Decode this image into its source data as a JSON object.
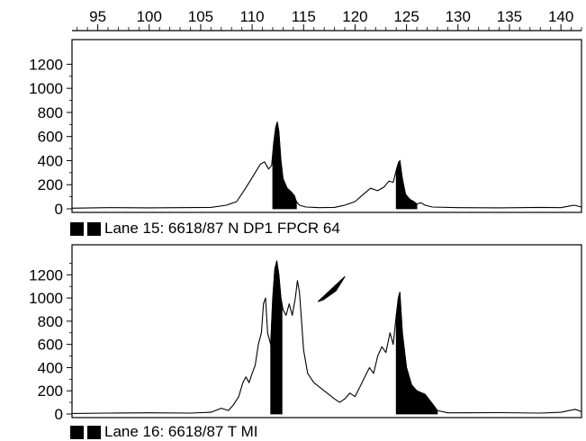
{
  "chart_data": {
    "type": "area",
    "x_axis": {
      "range": [
        92.5,
        142
      ],
      "ticks": [
        95,
        100,
        105,
        110,
        115,
        120,
        125,
        130,
        135,
        140
      ],
      "position": "top"
    },
    "panels": [
      {
        "id": "lane15",
        "label": "Lane 15: 6618/87 N DP1 FPCR 64",
        "ylim": [
          0,
          1300
        ],
        "yticks": [
          0,
          200,
          400,
          600,
          800,
          1000,
          1200
        ],
        "filled_regions": [
          [
            112,
            114.3
          ],
          [
            124,
            126
          ]
        ],
        "points": [
          [
            92.5,
            5
          ],
          [
            96,
            10
          ],
          [
            100,
            8
          ],
          [
            103,
            10
          ],
          [
            106,
            12
          ],
          [
            107.5,
            30
          ],
          [
            108.5,
            60
          ],
          [
            109.2,
            150
          ],
          [
            109.8,
            230
          ],
          [
            110.3,
            300
          ],
          [
            110.8,
            370
          ],
          [
            111.2,
            390
          ],
          [
            111.6,
            330
          ],
          [
            111.9,
            360
          ],
          [
            112.1,
            550
          ],
          [
            112.3,
            680
          ],
          [
            112.45,
            720
          ],
          [
            112.6,
            640
          ],
          [
            112.8,
            400
          ],
          [
            113.0,
            250
          ],
          [
            113.4,
            170
          ],
          [
            113.8,
            140
          ],
          [
            114.1,
            110
          ],
          [
            114.3,
            60
          ],
          [
            114.6,
            30
          ],
          [
            115.2,
            15
          ],
          [
            116.5,
            10
          ],
          [
            118,
            12
          ],
          [
            119,
            30
          ],
          [
            120,
            60
          ],
          [
            120.8,
            120
          ],
          [
            121.5,
            170
          ],
          [
            122.2,
            150
          ],
          [
            122.8,
            180
          ],
          [
            123.3,
            230
          ],
          [
            123.7,
            220
          ],
          [
            124.0,
            320
          ],
          [
            124.2,
            380
          ],
          [
            124.35,
            400
          ],
          [
            124.6,
            250
          ],
          [
            124.9,
            120
          ],
          [
            125.3,
            80
          ],
          [
            125.7,
            60
          ],
          [
            126.0,
            40
          ],
          [
            126.4,
            50
          ],
          [
            126.8,
            30
          ],
          [
            127.5,
            15
          ],
          [
            130,
            10
          ],
          [
            134,
            8
          ],
          [
            138,
            12
          ],
          [
            140,
            10
          ],
          [
            141.3,
            30
          ],
          [
            142,
            15
          ]
        ]
      },
      {
        "id": "lane16",
        "label": "Lane 16: 6618/87 T MI",
        "ylim": [
          0,
          1350
        ],
        "yticks": [
          0,
          200,
          400,
          600,
          800,
          1000,
          1200
        ],
        "filled_regions": [
          [
            111.8,
            112.9
          ],
          [
            124,
            128
          ]
        ],
        "points": [
          [
            92.5,
            5
          ],
          [
            96,
            8
          ],
          [
            100,
            10
          ],
          [
            104,
            8
          ],
          [
            106,
            15
          ],
          [
            107,
            50
          ],
          [
            107.7,
            30
          ],
          [
            108.2,
            80
          ],
          [
            108.7,
            150
          ],
          [
            109.1,
            270
          ],
          [
            109.4,
            320
          ],
          [
            109.7,
            270
          ],
          [
            110.0,
            350
          ],
          [
            110.3,
            420
          ],
          [
            110.6,
            600
          ],
          [
            110.9,
            700
          ],
          [
            111.1,
            950
          ],
          [
            111.3,
            1000
          ],
          [
            111.5,
            700
          ],
          [
            111.8,
            600
          ],
          [
            112.0,
            1000
          ],
          [
            112.2,
            1250
          ],
          [
            112.4,
            1320
          ],
          [
            112.6,
            1200
          ],
          [
            112.8,
            1000
          ],
          [
            113.0,
            900
          ],
          [
            113.3,
            850
          ],
          [
            113.6,
            950
          ],
          [
            113.9,
            850
          ],
          [
            114.2,
            1000
          ],
          [
            114.4,
            1150
          ],
          [
            114.6,
            1050
          ],
          [
            115.0,
            550
          ],
          [
            115.4,
            350
          ],
          [
            116.0,
            270
          ],
          [
            117,
            200
          ],
          [
            118,
            130
          ],
          [
            118.5,
            100
          ],
          [
            119,
            130
          ],
          [
            119.5,
            180
          ],
          [
            120,
            150
          ],
          [
            120.5,
            240
          ],
          [
            121,
            330
          ],
          [
            121.4,
            400
          ],
          [
            121.8,
            350
          ],
          [
            122.2,
            500
          ],
          [
            122.6,
            580
          ],
          [
            123.0,
            530
          ],
          [
            123.4,
            700
          ],
          [
            123.7,
            600
          ],
          [
            124.0,
            850
          ],
          [
            124.2,
            1000
          ],
          [
            124.35,
            1050
          ],
          [
            124.6,
            700
          ],
          [
            125.0,
            400
          ],
          [
            125.5,
            250
          ],
          [
            126.0,
            200
          ],
          [
            126.8,
            170
          ],
          [
            127.5,
            90
          ],
          [
            128.0,
            30
          ],
          [
            129,
            10
          ],
          [
            134,
            12
          ],
          [
            138,
            8
          ],
          [
            140,
            15
          ],
          [
            141.4,
            40
          ],
          [
            142,
            20
          ]
        ]
      }
    ],
    "annotations": [
      {
        "type": "arrowhead",
        "panel": "lane16",
        "pointing_to_x": 115,
        "pointing_to_value": 1000
      }
    ]
  }
}
